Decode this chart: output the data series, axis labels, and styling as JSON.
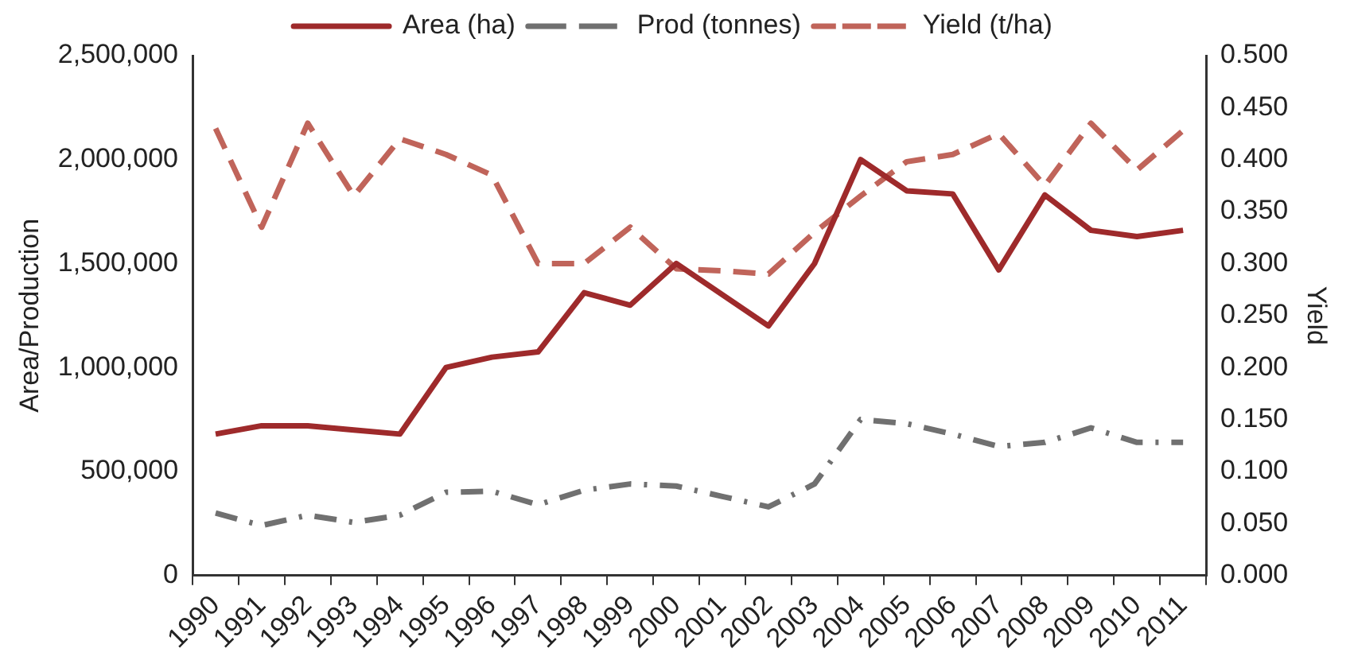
{
  "chart_data": {
    "type": "line",
    "categories": [
      "1990",
      "1991",
      "1992",
      "1993",
      "1994",
      "1995",
      "1996",
      "1997",
      "1998",
      "1999",
      "2000",
      "2001",
      "2002",
      "2003",
      "2004",
      "2005",
      "2006",
      "2007",
      "2008",
      "2009",
      "2010",
      "2011"
    ],
    "series": [
      {
        "name": "Area (ha)",
        "color": "#9e2a2b",
        "line_style": "solid",
        "values": [
          680000,
          720000,
          720000,
          700000,
          680000,
          1000000,
          1050000,
          1075000,
          1360000,
          1300000,
          1500000,
          1350000,
          1200000,
          1500000,
          2000000,
          1850000,
          1835000,
          1470000,
          1830000,
          1660000,
          1630000,
          1660000
        ]
      },
      {
        "name": "Prod (tonnes)",
        "color": "#707070",
        "line_style": "dashdot",
        "values": [
          300000,
          240000,
          290000,
          255000,
          290000,
          400000,
          405000,
          340000,
          410000,
          440000,
          430000,
          380000,
          330000,
          440000,
          750000,
          730000,
          680000,
          620000,
          640000,
          710000,
          640000,
          640000
        ]
      },
      {
        "name": "Yield (t/ha)",
        "color": "#c0645a",
        "line_style": "dashed",
        "axis": "y2",
        "values": [
          0.43,
          0.335,
          0.435,
          0.365,
          0.42,
          0.405,
          0.385,
          0.3,
          0.3,
          0.335,
          0.295,
          0.293,
          0.29,
          0.33,
          0.365,
          0.398,
          0.405,
          0.425,
          0.375,
          0.435,
          0.39,
          0.428
        ]
      }
    ],
    "ylabel": "Area/Production",
    "y2label": "Yield",
    "ylim": [
      0,
      2500000
    ],
    "yticks": [
      0,
      {
        "value": 500000,
        "label": "500,000"
      },
      {
        "value": 1000000,
        "label": "1,000,000"
      },
      {
        "value": 1500000,
        "label": "1,500,000"
      },
      {
        "value": 2000000,
        "label": "2,000,000"
      },
      {
        "value": 2500000,
        "label": "2,500,000"
      }
    ],
    "y2lim": [
      0,
      0.5
    ],
    "y2ticks": [
      {
        "value": 0,
        "label": "0.000"
      },
      {
        "value": 0.05,
        "label": "0.050"
      },
      {
        "value": 0.1,
        "label": "0.100"
      },
      {
        "value": 0.15,
        "label": "0.150"
      },
      {
        "value": 0.2,
        "label": "0.200"
      },
      {
        "value": 0.25,
        "label": "0.250"
      },
      {
        "value": 0.3,
        "label": "0.300"
      },
      {
        "value": 0.35,
        "label": "0.350"
      },
      {
        "value": 0.4,
        "label": "0.400"
      },
      {
        "value": 0.45,
        "label": "0.450"
      },
      {
        "value": 0.5,
        "label": "0.500"
      }
    ],
    "legend": "top",
    "grid": false,
    "marker": "none"
  }
}
